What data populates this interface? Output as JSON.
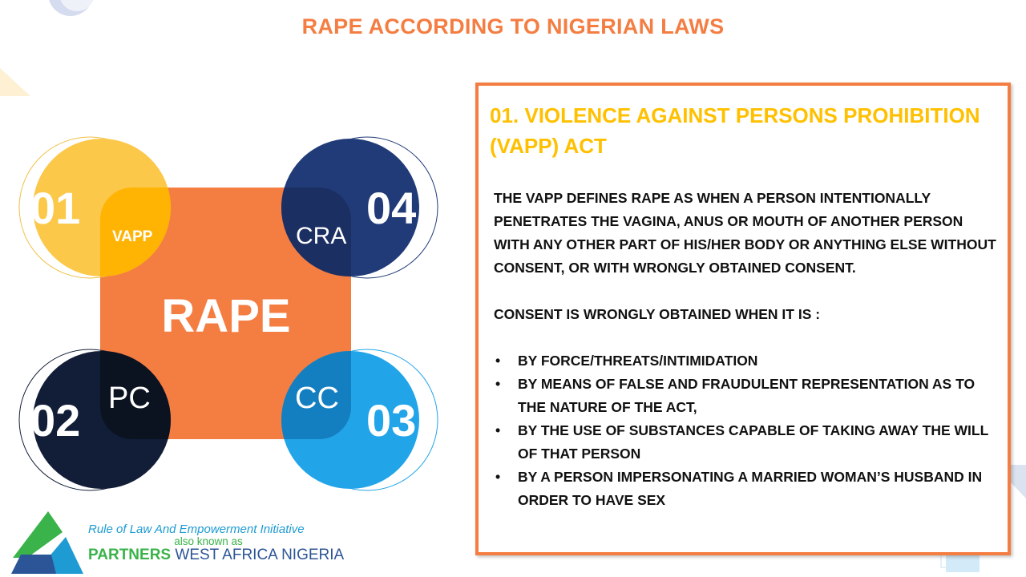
{
  "slide": {
    "title": "RAPE ACCORDING TO NIGERIAN LAWS"
  },
  "diagram": {
    "center_label": "RAPE",
    "items": [
      {
        "number": "01",
        "label": "VAPP",
        "color": "#fcc84a"
      },
      {
        "number": "02",
        "label": "PC",
        "color": "#121e38"
      },
      {
        "number": "03",
        "label": "CC",
        "color": "#22a4e8"
      },
      {
        "number": "04",
        "label": "CRA",
        "color": "#213b78"
      }
    ],
    "center_color": "#f47d42"
  },
  "panel": {
    "title": "01. VIOLENCE AGAINST PERSONS PROHIBITION (VAPP) ACT",
    "definition": "THE VAPP DEFINES RAPE AS WHEN A PERSON INTENTIONALLY PENETRATES THE VAGINA, ANUS OR MOUTH OF ANOTHER PERSON WITH ANY OTHER PART OF HIS/HER BODY OR ANYTHING ELSE WITHOUT CONSENT, OR WITH WRONGLY OBTAINED CONSENT.",
    "consent_heading": "CONSENT IS WRONGLY OBTAINED WHEN IT IS :",
    "bullets": [
      "BY FORCE/THREATS/INTIMIDATION",
      "BY MEANS OF FALSE AND FRAUDULENT REPRESENTATION AS TO THE NATURE OF THE ACT,",
      "BY THE USE OF SUBSTANCES CAPABLE OF TAKING AWAY THE WILL OF THAT PERSON",
      "BY A PERSON IMPERSONATING A MARRIED WOMAN’S HUSBAND IN ORDER TO HAVE SEX"
    ]
  },
  "logo": {
    "line1": "Rule of Law And Empowerment Initiative",
    "line2": "also known as",
    "line3_green": "PARTNERS",
    "line3_blue": "WEST AFRICA  NIGERIA"
  },
  "accent_color": "#f47d42",
  "title_color": "#ffc000"
}
